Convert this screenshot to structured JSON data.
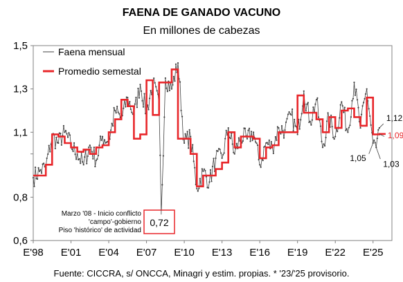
{
  "header": {
    "title": "FAENA DE GANADO VACUNO",
    "subtitle": "En millones de cabezas"
  },
  "footer": {
    "source": "Fuente: CICCRA, s/ ONCCA, Minagri y estim. propias. * '23/'25 provisorio."
  },
  "colors": {
    "monthly": "#404040",
    "semester": "#e8262a",
    "frame": "#808080",
    "note_box": "#e8262a",
    "label_red": "#e8262a"
  },
  "chart_data": {
    "type": "line",
    "xlim": [
      1998,
      2026.5
    ],
    "ylim": [
      0.6,
      1.5
    ],
    "y_ticks": [
      0.6,
      0.8,
      1.0,
      1.1,
      1.3,
      1.5
    ],
    "y_tick_labels": [
      "0,6",
      "0,8",
      "",
      "1,1",
      "1,3",
      "1,5"
    ],
    "x_ticks": [
      1998,
      2001,
      2004,
      2007,
      2010,
      2013,
      2016,
      2019,
      2022,
      2025
    ],
    "x_tick_labels": [
      "E'98",
      "E'01",
      "E'04",
      "E'07",
      "E'10",
      "E'13",
      "E'16",
      "E'19",
      "E'22",
      "E'25"
    ],
    "legend": {
      "position": "top-left"
    },
    "series": [
      {
        "name": "Faena mensual",
        "style": "line-markers",
        "x": [
          1998.0,
          1998.5,
          1999.0,
          1999.5,
          2000.0,
          2000.5,
          2001.0,
          2001.5,
          2002.0,
          2002.5,
          2003.0,
          2003.5,
          2004.0,
          2004.5,
          2005.0,
          2005.5,
          2006.0,
          2006.5,
          2007.0,
          2007.5,
          2008.0,
          2008.17,
          2008.5,
          2009.0,
          2009.5,
          2010.0,
          2010.5,
          2011.0,
          2011.5,
          2012.0,
          2012.5,
          2013.0,
          2013.5,
          2014.0,
          2014.5,
          2015.0,
          2015.5,
          2016.0,
          2016.5,
          2017.0,
          2017.5,
          2018.0,
          2018.5,
          2019.0,
          2019.5,
          2020.0,
          2020.5,
          2021.0,
          2021.5,
          2022.0,
          2022.5,
          2023.0,
          2023.5,
          2024.0,
          2024.5,
          2025.0,
          2025.25,
          2025.5
        ],
        "values": [
          0.89,
          0.92,
          0.94,
          1.08,
          1.05,
          1.1,
          1.04,
          1.0,
          0.95,
          1.04,
          0.97,
          1.08,
          1.06,
          1.2,
          1.16,
          1.26,
          1.18,
          1.32,
          1.19,
          1.33,
          1.22,
          0.72,
          1.35,
          1.3,
          1.42,
          1.05,
          1.08,
          0.84,
          0.92,
          0.87,
          0.98,
          0.98,
          1.12,
          1.0,
          1.08,
          1.07,
          1.1,
          0.95,
          1.05,
          1.03,
          1.12,
          1.11,
          1.18,
          1.09,
          1.29,
          1.15,
          1.25,
          1.03,
          1.17,
          1.08,
          1.24,
          1.1,
          1.33,
          1.12,
          1.3,
          1.05,
          1.03,
          1.12
        ]
      },
      {
        "name": "Promedio semestal",
        "style": "step",
        "x": [
          1998.0,
          1998.5,
          1999.0,
          1999.5,
          2000.0,
          2000.5,
          2001.0,
          2001.5,
          2002.0,
          2002.5,
          2003.0,
          2003.5,
          2004.0,
          2004.5,
          2005.0,
          2005.5,
          2006.0,
          2006.5,
          2007.0,
          2007.5,
          2008.0,
          2008.5,
          2009.0,
          2009.5,
          2010.0,
          2010.5,
          2011.0,
          2011.5,
          2012.0,
          2012.5,
          2013.0,
          2013.5,
          2014.0,
          2014.5,
          2015.0,
          2015.5,
          2016.0,
          2016.5,
          2017.0,
          2017.5,
          2018.0,
          2018.5,
          2019.0,
          2019.5,
          2020.0,
          2020.5,
          2021.0,
          2021.5,
          2022.0,
          2022.5,
          2023.0,
          2023.5,
          2024.0,
          2024.5,
          2025.0,
          2025.5
        ],
        "values": [
          0.9,
          0.9,
          0.95,
          1.09,
          1.08,
          1.05,
          1.03,
          1.01,
          1.02,
          1.0,
          1.03,
          1.04,
          1.1,
          1.16,
          1.25,
          1.22,
          1.07,
          1.09,
          1.34,
          1.18,
          1.33,
          1.33,
          1.39,
          1.07,
          1.07,
          1.0,
          0.85,
          0.9,
          0.9,
          0.93,
          0.96,
          1.1,
          1.03,
          1.08,
          1.08,
          1.07,
          0.98,
          1.03,
          1.04,
          1.1,
          1.1,
          1.1,
          1.27,
          1.19,
          1.19,
          1.16,
          1.1,
          1.17,
          1.12,
          1.2,
          1.21,
          1.17,
          1.13,
          1.26,
          1.09,
          1.092
        ]
      }
    ],
    "annotations": [
      {
        "text": "1,12",
        "x": 2025.5,
        "y": 1.12
      },
      {
        "text": "1,092",
        "x": 2025.5,
        "y": 1.092,
        "color": "red"
      },
      {
        "text": "1,05",
        "x": 2025.0,
        "y": 1.05
      },
      {
        "text": "1,03",
        "x": 2025.25,
        "y": 1.03
      },
      {
        "text": "0,72",
        "x": 2008.17,
        "y": 0.72,
        "boxed": true
      }
    ],
    "note": {
      "lines": [
        "Marzo '08 - Inicio conflicto",
        "'campo'-gobierno",
        "Piso 'histórico' de actividad"
      ]
    }
  }
}
